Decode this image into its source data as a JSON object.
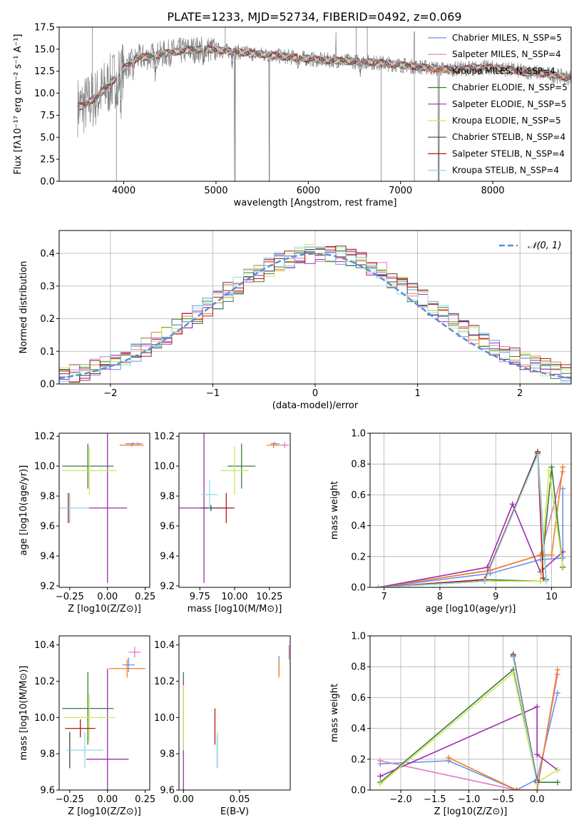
{
  "title": "PLATE=1233, MJD=52734, FIBERID=0492, z=0.069",
  "colors": {
    "chabrier_miles": "#6495ed",
    "salpeter_miles": "#e377c2",
    "kroupa_miles": "#f07f1e",
    "chabrier_elodie": "#3a7a3a",
    "salpeter_elodie": "#9b2fae",
    "kroupa_elodie": "#cfe85a",
    "chabrier_stelib": "#444444",
    "salpeter_stelib": "#b21818",
    "kroupa_stelib": "#8fd8e8",
    "data": "#808080",
    "normal": "#5b8fd6"
  },
  "chart_data": [
    {
      "id": "spectrum",
      "type": "line",
      "xlabel": "wavelength [Angstrom, rest frame]",
      "ylabel": "Flux [fλ10⁻¹⁷ erg cm⁻² s⁻¹ A⁻¹]",
      "xlim": [
        3300,
        8850
      ],
      "ylim": [
        0,
        17.5
      ],
      "xticks": [
        4000,
        5000,
        6000,
        7000,
        8000
      ],
      "yticks": [
        0.0,
        2.5,
        5.0,
        7.5,
        10.0,
        12.5,
        15.0,
        17.5
      ],
      "legend_position": "top-right",
      "legend": [
        "Chabrier MILES, N_SSP=5",
        "Salpeter MILES, N_SSP=4",
        "Kroupa MILES, N_SSP=4",
        "Chabrier ELODIE, N_SSP=5",
        "Salpeter ELODIE, N_SSP=5",
        "Kroupa ELODIE, N_SSP=5",
        "Chabrier STELIB, N_SSP=4",
        "Salpeter STELIB, N_SSP=4",
        "Kroupa STELIB, N_SSP=4"
      ],
      "continuum": {
        "x": [
          3550,
          3700,
          3850,
          4000,
          4150,
          4300,
          4500,
          4700,
          4900,
          5100,
          5300,
          5500,
          5700,
          5900,
          6100,
          6300,
          6500,
          6700,
          6900,
          7100,
          7300,
          7500,
          7700,
          7900,
          8100,
          8300,
          8500,
          8800
        ],
        "y": [
          8.5,
          9.5,
          11.0,
          12.8,
          14.0,
          14.2,
          14.6,
          14.9,
          15.0,
          14.8,
          14.6,
          14.4,
          14.2,
          14.0,
          13.8,
          13.7,
          13.6,
          13.5,
          13.3,
          13.1,
          12.9,
          12.7,
          12.8,
          12.9,
          12.8,
          12.5,
          12.3,
          11.8
        ]
      }
    },
    {
      "id": "residuals",
      "type": "area",
      "xlabel": "(data-model)/error",
      "ylabel": "Normed distribution",
      "xlim": [
        -2.5,
        2.5
      ],
      "ylim": [
        0,
        0.47
      ],
      "xticks": [
        -2,
        -1,
        0,
        1,
        2
      ],
      "yticks": [
        0.0,
        0.1,
        0.2,
        0.3,
        0.4
      ],
      "legend": [
        "𝒩(0, 1)"
      ],
      "legend_position": "top-right",
      "grid": true
    },
    {
      "id": "age_vs_Z",
      "type": "scatter",
      "xlabel": "Z [log10(Z/Z⊙)]",
      "ylabel": "age  [log10(age/yr)]",
      "xlim": [
        -0.32,
        0.28
      ],
      "ylim": [
        9.19,
        10.22
      ],
      "xticks": [
        -0.25,
        0.0,
        0.25
      ],
      "xticklabels": [
        "−0.25",
        "0.00",
        "0.25"
      ],
      "yticks": [
        9.2,
        9.4,
        9.6,
        9.8,
        10.0,
        10.2
      ],
      "points": [
        {
          "model": "chabrier_miles",
          "x": 0.17,
          "y": 10.15,
          "xe": 0.05,
          "ye": 0.01
        },
        {
          "model": "salpeter_miles",
          "x": 0.2,
          "y": 10.15,
          "xe": 0.03,
          "ye": 0.01
        },
        {
          "model": "kroupa_miles",
          "x": 0.16,
          "y": 10.14,
          "xe": 0.08,
          "ye": 0.01
        },
        {
          "model": "chabrier_elodie",
          "x": -0.13,
          "y": 10.0,
          "xe": 0.17,
          "ye": 0.15
        },
        {
          "model": "salpeter_elodie",
          "x": 0.0,
          "y": 9.72,
          "xe": 0.13,
          "ye": 0.5
        },
        {
          "model": "kroupa_elodie",
          "x": -0.12,
          "y": 9.97,
          "xe": 0.18,
          "ye": 0.16
        },
        {
          "model": "chabrier_stelib",
          "x": -0.25,
          "y": 9.72,
          "xe": 0.01,
          "ye": 0.1
        },
        {
          "model": "salpeter_stelib",
          "x": -0.26,
          "y": 9.72,
          "xe": 0.01,
          "ye": 0.1
        },
        {
          "model": "kroupa_stelib",
          "x": -0.25,
          "y": 9.72,
          "xe": 0.13,
          "ye": 0.1
        }
      ]
    },
    {
      "id": "age_vs_mass",
      "type": "scatter",
      "xlabel": "mass [log10(M/M⊙)]",
      "ylabel": "",
      "xlim": [
        9.6,
        10.4
      ],
      "ylim": [
        9.19,
        10.22
      ],
      "xticks": [
        9.75,
        10.0,
        10.25
      ],
      "xticklabels": [
        "9.75",
        "10.00",
        "10.25"
      ],
      "yticks": [
        9.2,
        9.4,
        9.6,
        9.8,
        10.0,
        10.2
      ],
      "points": [
        {
          "model": "chabrier_miles",
          "x": 10.29,
          "y": 10.15,
          "xe": 0.03,
          "ye": 0.01
        },
        {
          "model": "salpeter_miles",
          "x": 10.36,
          "y": 10.14,
          "xe": 0.03,
          "ye": 0.02
        },
        {
          "model": "kroupa_miles",
          "x": 10.28,
          "y": 10.14,
          "xe": 0.05,
          "ye": 0.02
        },
        {
          "model": "chabrier_elodie",
          "x": 10.05,
          "y": 10.0,
          "xe": 0.1,
          "ye": 0.15
        },
        {
          "model": "salpeter_elodie",
          "x": 9.78,
          "y": 9.72,
          "xe": 0.2,
          "ye": 0.5
        },
        {
          "model": "kroupa_elodie",
          "x": 10.0,
          "y": 9.97,
          "xe": 0.1,
          "ye": 0.16
        },
        {
          "model": "chabrier_stelib",
          "x": 9.83,
          "y": 9.72,
          "xe": 0.07,
          "ye": 0.02
        },
        {
          "model": "salpeter_stelib",
          "x": 9.94,
          "y": 9.72,
          "xe": 0.06,
          "ye": 0.1
        },
        {
          "model": "kroupa_stelib",
          "x": 9.82,
          "y": 9.81,
          "xe": 0.06,
          "ye": 0.1
        }
      ]
    },
    {
      "id": "massweight_vs_age",
      "type": "line",
      "xlabel": "age  [log10(age/yr)]",
      "ylabel": "mass weight",
      "xlim": [
        6.75,
        10.35
      ],
      "ylim": [
        0,
        1.0
      ],
      "xticks": [
        7,
        8,
        9,
        10
      ],
      "yticks": [
        0.0,
        0.2,
        0.4,
        0.6,
        0.8,
        1.0
      ],
      "grid": true,
      "series": [
        {
          "model": "chabrier_miles",
          "x": [
            6.9,
            8.9,
            9.8,
            10.2,
            10.2
          ],
          "y": [
            0.0,
            0.09,
            0.18,
            0.19,
            0.64
          ]
        },
        {
          "model": "salpeter_miles",
          "x": [
            6.9,
            8.9,
            9.8,
            10.2
          ],
          "y": [
            0.0,
            0.11,
            0.21,
            0.75
          ]
        },
        {
          "model": "kroupa_miles",
          "x": [
            6.9,
            8.9,
            9.8,
            10.0,
            10.2
          ],
          "y": [
            0.0,
            0.11,
            0.21,
            0.21,
            0.78
          ]
        },
        {
          "model": "chabrier_elodie",
          "x": [
            6.9,
            8.8,
            9.8,
            10.0,
            10.2
          ],
          "y": [
            0.0,
            0.05,
            0.04,
            0.78,
            0.13
          ]
        },
        {
          "model": "salpeter_elodie",
          "x": [
            6.9,
            8.85,
            9.3,
            9.8,
            10.2
          ],
          "y": [
            0.0,
            0.13,
            0.54,
            0.1,
            0.23
          ]
        },
        {
          "model": "kroupa_elodie",
          "x": [
            6.9,
            8.8,
            9.8,
            9.95,
            10.2
          ],
          "y": [
            0.0,
            0.04,
            0.04,
            0.76,
            0.14
          ]
        },
        {
          "model": "chabrier_stelib",
          "x": [
            6.9,
            8.8,
            9.75,
            9.9
          ],
          "y": [
            0.0,
            0.04,
            0.88,
            0.05
          ]
        },
        {
          "model": "salpeter_stelib",
          "x": [
            6.9,
            8.8,
            9.75,
            9.85
          ],
          "y": [
            0.0,
            0.05,
            0.87,
            0.06
          ]
        },
        {
          "model": "kroupa_stelib",
          "x": [
            6.9,
            8.8,
            9.75,
            9.9
          ],
          "y": [
            0.0,
            0.04,
            0.86,
            0.04
          ]
        }
      ]
    },
    {
      "id": "mass_vs_Z",
      "type": "scatter",
      "xlabel": "Z [log10(Z/Z⊙)]",
      "ylabel": "mass [log10(M/M⊙)]",
      "xlim": [
        -0.32,
        0.28
      ],
      "ylim": [
        9.6,
        10.45
      ],
      "xticks": [
        -0.25,
        0.0,
        0.25
      ],
      "xticklabels": [
        "−0.25",
        "0.00",
        "0.25"
      ],
      "yticks": [
        9.6,
        9.8,
        10.0,
        10.2,
        10.4
      ],
      "points": [
        {
          "model": "chabrier_miles",
          "x": 0.14,
          "y": 10.29,
          "xe": 0.04,
          "ye": 0.04
        },
        {
          "model": "salpeter_miles",
          "x": 0.18,
          "y": 10.36,
          "xe": 0.04,
          "ye": 0.03
        },
        {
          "model": "kroupa_miles",
          "x": 0.13,
          "y": 10.27,
          "xe": 0.12,
          "ye": 0.05
        },
        {
          "model": "chabrier_elodie",
          "x": -0.13,
          "y": 10.05,
          "xe": 0.17,
          "ye": 0.2
        },
        {
          "model": "salpeter_elodie",
          "x": 0.0,
          "y": 9.77,
          "xe": 0.14,
          "ye": 0.5
        },
        {
          "model": "kroupa_elodie",
          "x": -0.12,
          "y": 10.0,
          "xe": 0.17,
          "ye": 0.13
        },
        {
          "model": "chabrier_stelib",
          "x": -0.25,
          "y": 9.82,
          "xe": 0.01,
          "ye": 0.1
        },
        {
          "model": "salpeter_stelib",
          "x": -0.18,
          "y": 9.94,
          "xe": 0.1,
          "ye": 0.05
        },
        {
          "model": "kroupa_stelib",
          "x": -0.15,
          "y": 9.82,
          "xe": 0.12,
          "ye": 0.1
        }
      ]
    },
    {
      "id": "mass_vs_ebv",
      "type": "scatter",
      "xlabel": "E(B-V)",
      "ylabel": "",
      "xlim": [
        -0.004,
        0.095
      ],
      "ylim": [
        9.6,
        10.45
      ],
      "xticks": [
        0.0,
        0.05
      ],
      "xticklabels": [
        "0.00",
        "0.05"
      ],
      "yticks": [
        9.6,
        9.8,
        10.0,
        10.2,
        10.4
      ],
      "points": [
        {
          "model": "chabrier_miles",
          "x": 0.085,
          "y": 10.29,
          "xe": 0,
          "ye": 0.05
        },
        {
          "model": "salpeter_miles",
          "x": 0.094,
          "y": 10.36,
          "xe": 0,
          "ye": 0.04
        },
        {
          "model": "kroupa_miles",
          "x": 0.085,
          "y": 10.27,
          "xe": 0,
          "ye": 0.05
        },
        {
          "model": "chabrier_elodie",
          "x": 0.0,
          "y": 10.05,
          "xe": 0,
          "ye": 0.2
        },
        {
          "model": "salpeter_elodie",
          "x": 0.0,
          "y": 9.9,
          "xe": 0,
          "ye": 0.3
        },
        {
          "model": "kroupa_elodie",
          "x": 0.0,
          "y": 10.0,
          "xe": 0,
          "ye": 0.18
        },
        {
          "model": "chabrier_stelib",
          "x": 0.03,
          "y": 9.81,
          "xe": 0,
          "ye": 0.09
        },
        {
          "model": "salpeter_stelib",
          "x": 0.028,
          "y": 9.95,
          "xe": 0,
          "ye": 0.1
        },
        {
          "model": "kroupa_stelib",
          "x": 0.03,
          "y": 9.82,
          "xe": 0,
          "ye": 0.1
        }
      ]
    },
    {
      "id": "massweight_vs_Z",
      "type": "line",
      "xlabel": "Z [log10(Z/Z⊙)]",
      "ylabel": "mass weight",
      "xlim": [
        -2.45,
        0.5
      ],
      "ylim": [
        0,
        1.0
      ],
      "xticks": [
        -2.0,
        -1.5,
        -1.0,
        -0.5,
        0.0
      ],
      "xticklabels": [
        "−2.0",
        "−1.5",
        "−1.0",
        "−0.5",
        "0.0"
      ],
      "yticks": [
        0.0,
        0.2,
        0.4,
        0.6,
        0.8,
        1.0
      ],
      "grid": true,
      "series": [
        {
          "model": "chabrier_miles",
          "x": [
            -2.3,
            -1.3,
            -0.3,
            0.0,
            0.3
          ],
          "y": [
            0.17,
            0.19,
            0.0,
            0.07,
            0.63
          ]
        },
        {
          "model": "salpeter_miles",
          "x": [
            -2.3,
            -0.3,
            0.0,
            0.3
          ],
          "y": [
            0.19,
            0.0,
            0.0,
            0.75
          ]
        },
        {
          "model": "kroupa_miles",
          "x": [
            -1.3,
            -0.3,
            0.0,
            0.3
          ],
          "y": [
            0.21,
            0.0,
            0.0,
            0.78
          ]
        },
        {
          "model": "chabrier_elodie",
          "x": [
            -2.3,
            -0.35,
            0.0,
            0.3
          ],
          "y": [
            0.05,
            0.78,
            0.05,
            0.05
          ]
        },
        {
          "model": "salpeter_elodie",
          "x": [
            -2.3,
            0.0,
            0.0,
            0.3
          ],
          "y": [
            0.09,
            0.54,
            0.23,
            0.13
          ]
        },
        {
          "model": "kroupa_elodie",
          "x": [
            -2.3,
            -0.35,
            0.0,
            0.3
          ],
          "y": [
            0.04,
            0.76,
            0.05,
            0.13
          ]
        },
        {
          "model": "chabrier_stelib",
          "x": [
            -0.35,
            0.0
          ],
          "y": [
            0.88,
            0.06
          ]
        },
        {
          "model": "salpeter_stelib",
          "x": [
            -0.35,
            0.0
          ],
          "y": [
            0.87,
            0.05
          ]
        },
        {
          "model": "kroupa_stelib",
          "x": [
            -0.35,
            0.0
          ],
          "y": [
            0.86,
            0.04
          ]
        }
      ]
    }
  ]
}
